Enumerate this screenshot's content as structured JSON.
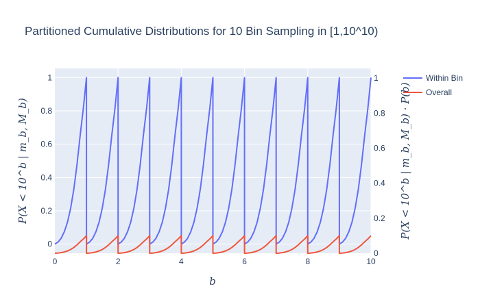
{
  "chart_data": {
    "type": "line",
    "title": "Partitioned Cumulative Distributions for 10 Bin Sampling in [1,10^10)",
    "xlabel": "b",
    "ylabel_left": "P(X < 10^b | m_b, M_b)",
    "ylabel_right": "P(X < 10^b | m_b, M_b) · P(b)",
    "xlim": [
      0,
      10
    ],
    "ylim_left": [
      -0.055,
      1.055
    ],
    "ylim_right": [
      0,
      1.055
    ],
    "xticks": [
      "0",
      "2",
      "4",
      "6",
      "8",
      "10"
    ],
    "xtick_values": [
      0,
      2,
      4,
      6,
      8,
      10
    ],
    "yticks_left": [
      "0",
      "0.2",
      "0.4",
      "0.6",
      "0.8",
      "1"
    ],
    "ytick_values_left": [
      0,
      0.2,
      0.4,
      0.6,
      0.8,
      1
    ],
    "yticks_right": [
      "0",
      "0.2",
      "0.4",
      "0.6",
      "0.8",
      "1"
    ],
    "ytick_values_right": [
      0,
      0.2,
      0.4,
      0.6,
      0.8,
      1
    ],
    "bins": 10,
    "series": [
      {
        "name": "Within Bin",
        "color": "#636efa",
        "axis": "left",
        "description": "CDF within each bin, rises from 0 to 1 over each unit interval",
        "per_bin_x": [
          0,
          0.1,
          0.2,
          0.3,
          0.4,
          0.5,
          0.6,
          0.7,
          0.8,
          0.9,
          1.0
        ],
        "per_bin_y": [
          0,
          0.012,
          0.035,
          0.074,
          0.132,
          0.216,
          0.329,
          0.477,
          0.652,
          0.813,
          1.0
        ]
      },
      {
        "name": "Overall",
        "color": "#ef553b",
        "axis": "right",
        "description": "Within-bin CDF scaled by bin probability 0.1",
        "per_bin_x": [
          0,
          0.1,
          0.2,
          0.3,
          0.4,
          0.5,
          0.6,
          0.7,
          0.8,
          0.9,
          1.0
        ],
        "per_bin_y": [
          0,
          0.0012,
          0.0035,
          0.0074,
          0.0132,
          0.0216,
          0.0329,
          0.0477,
          0.0652,
          0.0813,
          0.1
        ]
      }
    ],
    "legend_position": "top-right"
  }
}
